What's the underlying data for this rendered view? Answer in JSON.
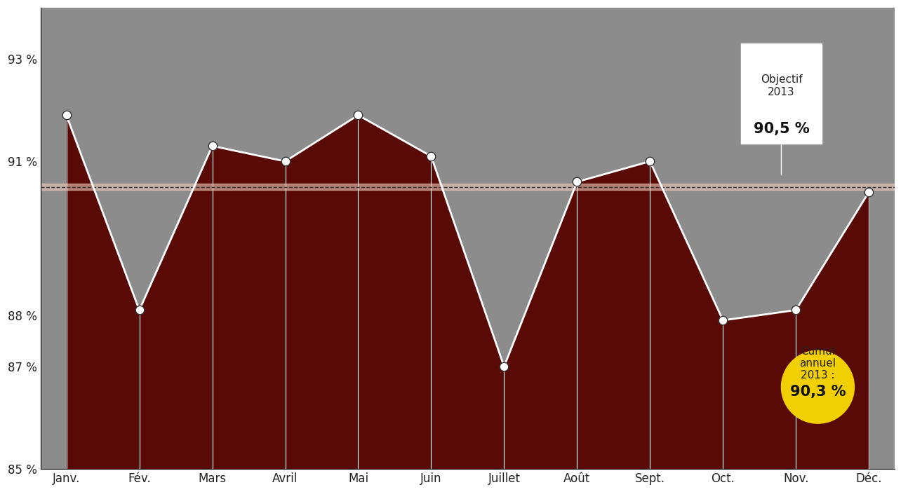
{
  "chart_data": {
    "type": "line",
    "categories": [
      "Janv.",
      "Fév.",
      "Mars",
      "Avril",
      "Mai",
      "Juin",
      "Juillet",
      "Août",
      "Sept.",
      "Oct.",
      "Nov.",
      "Déc."
    ],
    "values": [
      91.9,
      88.1,
      91.3,
      91.0,
      91.9,
      91.1,
      87.0,
      90.6,
      91.0,
      87.9,
      88.1,
      90.4
    ],
    "color": "#ffffff",
    "marker": "o",
    "ylim": [
      85,
      94
    ],
    "yticks": [
      {
        "value": 85,
        "label": "85 %"
      },
      {
        "value": 87,
        "label": "87 %"
      },
      {
        "value": 88,
        "label": "88 %"
      },
      {
        "value": 91,
        "label": "91 %"
      },
      {
        "value": 93,
        "label": "93 %"
      }
    ],
    "grid": false,
    "target": {
      "value": 90.5,
      "label": "Objectif\n2013",
      "value_label": "90,5 %",
      "line_style": "dashed"
    },
    "cumulative": {
      "label": "Cumul\nannuel\n2013 :",
      "value_label": "90,3 %",
      "color": "#f2cf00"
    }
  }
}
